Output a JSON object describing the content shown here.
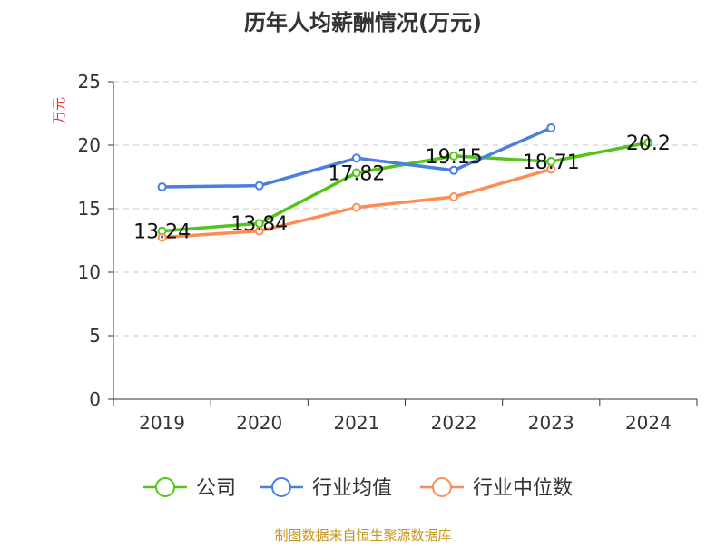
{
  "chart_data": {
    "type": "line",
    "title": "历年人均薪酬情况(万元)",
    "ylabel": "万元",
    "xlabel": "",
    "ylim": [
      0,
      25
    ],
    "yticks": [
      0,
      5,
      10,
      15,
      20,
      25
    ],
    "categories": [
      "2019",
      "2020",
      "2021",
      "2022",
      "2023",
      "2024"
    ],
    "grid": true,
    "legend_position": "bottom",
    "series": [
      {
        "name": "公司",
        "color": "#52c41a",
        "values": [
          13.24,
          13.84,
          17.82,
          19.15,
          18.71,
          20.2
        ],
        "labels": [
          "13.24",
          "13.84",
          "17.82",
          "19.15",
          "18.71",
          "20.2"
        ]
      },
      {
        "name": "行业均值",
        "color": "#4a7fe0",
        "values": [
          16.71,
          16.81,
          18.98,
          18.02,
          21.36,
          null
        ]
      },
      {
        "name": "行业中位数",
        "color": "#ff8c55",
        "values": [
          12.74,
          13.24,
          15.1,
          15.93,
          18.1,
          null
        ]
      }
    ]
  },
  "footer": "制图数据来自恒生聚源数据库"
}
